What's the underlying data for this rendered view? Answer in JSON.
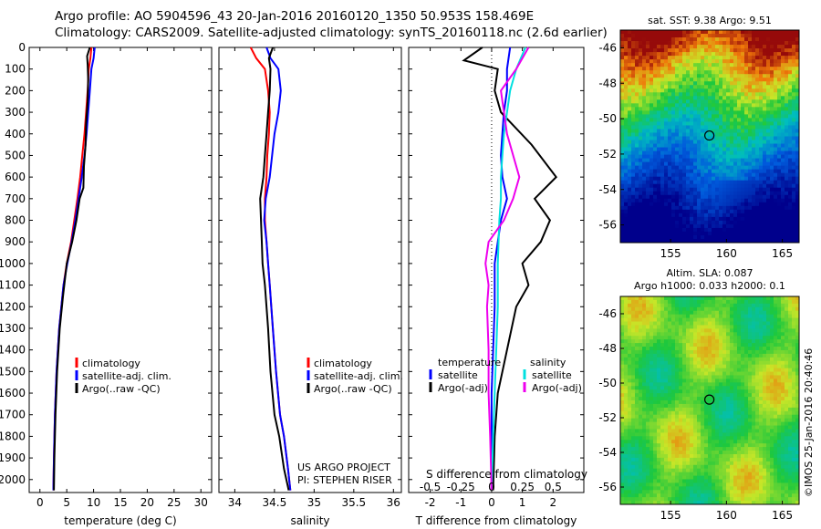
{
  "header": {
    "line1": "Argo profile: AO 5904596_43 20-Jan-2016 20160120_1350 50.953S 158.469E",
    "line2": "Climatology: CARS2009. Satellite-adjusted climatology: synTS_20160118.nc (2.6d earlier)"
  },
  "chart_data": [
    {
      "type": "line",
      "xlabel": "temperature (deg C)",
      "ylabel": "",
      "xlim": [
        -2,
        32
      ],
      "ylim": [
        2060,
        0
      ],
      "xticks": [
        0,
        5,
        10,
        15,
        20,
        25,
        30
      ],
      "yticks": [
        0,
        100,
        200,
        300,
        400,
        500,
        600,
        700,
        800,
        900,
        1000,
        1100,
        1200,
        1300,
        1400,
        1500,
        1600,
        1700,
        1800,
        1900,
        2000
      ],
      "legend": [
        "climatology",
        "satellite-adj. clim.",
        "Argo(..raw -QC)"
      ],
      "series": [
        {
          "name": "climatology",
          "color": "#ff0000",
          "x": [
            9.6,
            9.4,
            9.1,
            8.9,
            8.6,
            8.3,
            7.9,
            7.5,
            7.0,
            6.4,
            5.8,
            5.0,
            4.4,
            3.6,
            3.1,
            2.8,
            2.6,
            2.5
          ],
          "y": [
            0,
            50,
            100,
            200,
            300,
            400,
            500,
            600,
            700,
            800,
            900,
            1000,
            1100,
            1300,
            1500,
            1700,
            1900,
            2050
          ]
        },
        {
          "name": "satellite-adj. clim.",
          "color": "#0000ff",
          "x": [
            10.2,
            10.0,
            9.6,
            9.3,
            9.0,
            8.7,
            8.3,
            7.8,
            7.2,
            6.6,
            5.9,
            5.1,
            4.4,
            3.6,
            3.1,
            2.8,
            2.6,
            2.5
          ],
          "y": [
            0,
            50,
            100,
            200,
            300,
            400,
            500,
            600,
            700,
            800,
            900,
            1000,
            1100,
            1300,
            1500,
            1700,
            1900,
            2050
          ]
        },
        {
          "name": "Argo(..raw -QC)",
          "color": "#000000",
          "x": [
            9.3,
            8.8,
            8.9,
            9.0,
            8.9,
            8.6,
            8.5,
            8.2,
            8.1,
            7.4,
            6.8,
            6.0,
            5.0,
            4.3,
            3.7,
            3.2,
            2.9,
            2.7,
            2.6
          ],
          "y": [
            0,
            40,
            80,
            150,
            250,
            350,
            450,
            550,
            650,
            700,
            800,
            900,
            1000,
            1150,
            1300,
            1500,
            1700,
            1900,
            2050
          ]
        }
      ]
    },
    {
      "type": "line",
      "xlabel": "salinity",
      "ylabel": "",
      "xlim": [
        33.8,
        36.1
      ],
      "ylim": [
        2060,
        0
      ],
      "xticks": [
        34,
        34.5,
        35,
        35.5,
        36
      ],
      "xticklabels": [
        "34",
        "34.5",
        "35",
        "35.5",
        "36"
      ],
      "legend": [
        "climatology",
        "satellite-adj. clim.",
        "Argo(..raw -QC)"
      ],
      "annotation": [
        "US ARGO PROJECT",
        "PI: STEPHEN RISER"
      ],
      "series": [
        {
          "name": "climatology",
          "color": "#ff0000",
          "x": [
            34.2,
            34.27,
            34.38,
            34.42,
            34.44,
            34.43,
            34.41,
            34.4,
            34.38,
            34.38,
            34.4,
            34.42,
            34.44,
            34.48,
            34.52,
            34.57,
            34.62,
            34.67,
            34.7
          ],
          "y": [
            0,
            50,
            100,
            200,
            300,
            400,
            500,
            600,
            700,
            800,
            900,
            1000,
            1100,
            1300,
            1500,
            1700,
            1800,
            1950,
            2050
          ]
        },
        {
          "name": "satellite-adj. clim.",
          "color": "#0000ff",
          "x": [
            34.4,
            34.45,
            34.55,
            34.58,
            34.55,
            34.5,
            34.47,
            34.44,
            34.39,
            34.37,
            34.4,
            34.42,
            34.44,
            34.48,
            34.52,
            34.57,
            34.62,
            34.67,
            34.7
          ],
          "y": [
            0,
            50,
            100,
            200,
            300,
            400,
            500,
            600,
            700,
            800,
            900,
            1000,
            1100,
            1300,
            1500,
            1700,
            1800,
            1950,
            2050
          ]
        },
        {
          "name": "Argo(..raw -QC)",
          "color": "#000000",
          "x": [
            34.48,
            34.43,
            34.45,
            34.44,
            34.42,
            34.4,
            34.38,
            34.36,
            34.32,
            34.33,
            34.34,
            34.35,
            34.38,
            34.42,
            34.45,
            34.5,
            34.56,
            34.62,
            34.68
          ],
          "y": [
            0,
            50,
            100,
            200,
            300,
            400,
            500,
            600,
            700,
            800,
            900,
            1000,
            1100,
            1300,
            1500,
            1700,
            1800,
            1950,
            2050
          ]
        }
      ]
    },
    {
      "type": "line",
      "xlabel": "T difference from climatology",
      "title": "S difference from climatology",
      "xlim": [
        -2.7,
        3.0
      ],
      "ylim": [
        2060,
        0
      ],
      "xticks": [
        -2,
        -1,
        0,
        1,
        2
      ],
      "top_xticks": [
        -0.5,
        -0.25,
        0,
        0.25,
        0.5
      ],
      "top_xticklabels": [
        "-0.5",
        "-0.25",
        "0",
        "0.25",
        "0.5"
      ],
      "legend_left": {
        "title": "temperature",
        "items": [
          "satellite",
          "Argo(-adj)"
        ]
      },
      "legend_right": {
        "title": "salinity",
        "items": [
          "satellite",
          "Argo(-adj)"
        ]
      },
      "series": [
        {
          "name": "satellite",
          "color": "#0000ff",
          "x": [
            0.6,
            0.5,
            0.5,
            0.4,
            0.35,
            0.3,
            0.35,
            0.5,
            0.3,
            0.2,
            0.1,
            0.1,
            0.05,
            0.0,
            0.0,
            0.0
          ],
          "y": [
            0,
            100,
            200,
            300,
            400,
            500,
            600,
            700,
            800,
            900,
            1000,
            1200,
            1400,
            1600,
            1800,
            2050
          ]
        },
        {
          "name": "Argo(-adj)",
          "color": "#000000",
          "x": [
            -0.3,
            -0.9,
            0.2,
            0.1,
            0.3,
            1.3,
            2.1,
            1.4,
            1.9,
            1.6,
            1.0,
            1.2,
            0.8,
            0.5,
            0.2,
            0.1,
            0.05
          ],
          "y": [
            0,
            60,
            100,
            200,
            300,
            450,
            600,
            700,
            800,
            900,
            1000,
            1100,
            1200,
            1400,
            1600,
            1800,
            2050
          ]
        },
        {
          "name": "satellite",
          "color": "#00e0e0",
          "x": [
            1.1,
            0.8,
            0.6,
            0.5,
            0.4,
            0.35,
            0.3,
            0.3,
            0.25,
            0.2,
            0.2,
            0.15,
            0.1,
            0.05,
            0.0
          ],
          "y": [
            0,
            100,
            200,
            300,
            400,
            500,
            600,
            700,
            800,
            1000,
            1200,
            1400,
            1600,
            1800,
            2050
          ]
        },
        {
          "name": "Argo(-adj)",
          "color": "#ee00ee",
          "x": [
            1.2,
            0.8,
            0.3,
            0.5,
            0.9,
            0.7,
            0.4,
            -0.1,
            -0.2,
            -0.1,
            -0.15,
            -0.1,
            -0.1,
            -0.05,
            0.0
          ],
          "y": [
            0,
            100,
            200,
            400,
            600,
            700,
            800,
            900,
            1000,
            1100,
            1200,
            1400,
            1600,
            1800,
            2050
          ]
        }
      ]
    },
    {
      "type": "heatmap",
      "title": "sat. SST: 9.38 Argo: 9.51",
      "xlim": [
        150.5,
        166.5
      ],
      "ylim": [
        -57,
        -45
      ],
      "xticks": [
        155,
        160,
        165
      ],
      "yticks": [
        -46,
        -48,
        -50,
        -52,
        -54,
        -56
      ],
      "marker": {
        "lon": 158.469,
        "lat": -50.953
      }
    },
    {
      "type": "heatmap",
      "title": "Altim. SLA: 0.087",
      "subtitle": "Argo h1000: 0.033 h2000: 0.1",
      "xlim": [
        150.5,
        166.5
      ],
      "ylim": [
        -57,
        -45
      ],
      "xticks": [
        155,
        160,
        165
      ],
      "yticks": [
        -46,
        -48,
        -50,
        -52,
        -54,
        -56
      ],
      "marker": {
        "lon": 158.469,
        "lat": -50.953
      }
    }
  ],
  "credit": "©IMOS 25-Jan-2016 20:40:46"
}
